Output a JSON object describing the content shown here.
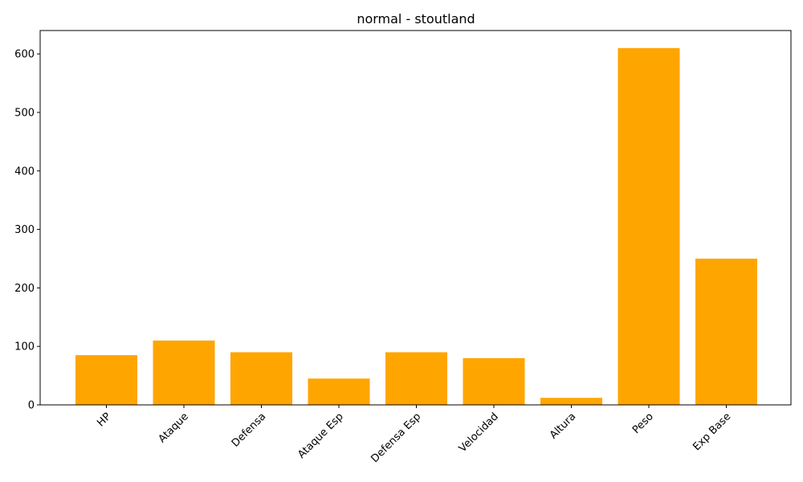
{
  "chart_data": {
    "type": "bar",
    "title": "normal - stoutland",
    "xlabel": "",
    "ylabel": "",
    "categories": [
      "HP",
      "Ataque",
      "Defensa",
      "Ataque Esp",
      "Defensa Esp",
      "Velocidad",
      "Altura",
      "Peso",
      "Exp Base"
    ],
    "values": [
      85,
      110,
      90,
      45,
      90,
      80,
      12,
      610,
      250
    ],
    "ylim": [
      0,
      640
    ],
    "yticks": [
      0,
      100,
      200,
      300,
      400,
      500,
      600
    ],
    "bar_color": "#ffa500",
    "grid": false
  }
}
